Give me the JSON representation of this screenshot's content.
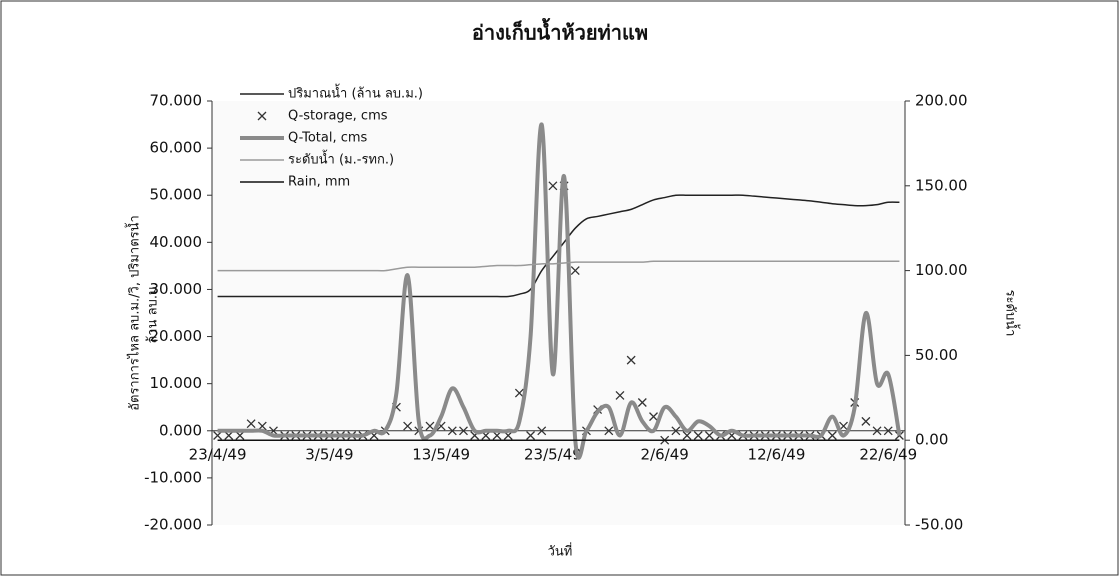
{
  "chart_data": {
    "type": "line",
    "title": "อ่างเก็บน้ำห้วยท่าแพ",
    "xlabel": "วันที่",
    "ylabel": [
      "อัตราการไหล ลบ.ม./วิ, ปริมาตรน้ำ",
      "ล้าน ลบ.ม."
    ],
    "y2label": "ระดับน้ำ",
    "categories": [
      "23/4/49",
      null,
      null,
      null,
      null,
      null,
      null,
      null,
      null,
      null,
      "3/5/49",
      null,
      null,
      null,
      null,
      null,
      null,
      null,
      null,
      null,
      "13/5/49",
      null,
      null,
      null,
      null,
      null,
      null,
      null,
      null,
      null,
      "23/5/49",
      null,
      null,
      null,
      null,
      null,
      null,
      null,
      null,
      null,
      "2/6/49",
      null,
      null,
      null,
      null,
      null,
      null,
      null,
      null,
      null,
      "12/6/49",
      null,
      null,
      null,
      null,
      null,
      null,
      null,
      null,
      null,
      "22/6/49",
      null
    ],
    "ylim": [
      -20,
      70
    ],
    "yticks": [
      {
        "value": 70,
        "label": "70.000"
      },
      {
        "value": 60,
        "label": "60.000"
      },
      {
        "value": 50,
        "label": "50.000"
      },
      {
        "value": 40,
        "label": "40.000"
      },
      {
        "value": 30,
        "label": "30.000"
      },
      {
        "value": 20,
        "label": "20.000"
      },
      {
        "value": 10,
        "label": "10.000"
      },
      {
        "value": 0,
        "label": "0.000"
      },
      {
        "value": -10,
        "label": "-10.000"
      },
      {
        "value": -20,
        "label": "-20.000"
      }
    ],
    "y2lim": [
      -50,
      200
    ],
    "y2ticks": [
      {
        "value": 200,
        "label": "200.00"
      },
      {
        "value": 150,
        "label": "150.00"
      },
      {
        "value": 100,
        "label": "100.00"
      },
      {
        "value": 50,
        "label": "50.00"
      },
      {
        "value": 0,
        "label": "0.00"
      },
      {
        "value": -50,
        "label": "-50.00"
      }
    ],
    "legend": "upper left",
    "series": [
      {
        "name": "ปริมาณน้ำ (ล้าน ลบ.ม.)",
        "color": "#222222",
        "style": "line",
        "values": [
          28.5,
          28.5,
          28.5,
          28.5,
          28.5,
          28.5,
          28.5,
          28.5,
          28.5,
          28.5,
          28.5,
          28.5,
          28.5,
          28.5,
          28.5,
          28.5,
          28.5,
          28.5,
          28.5,
          28.5,
          28.5,
          28.5,
          28.5,
          28.5,
          28.5,
          28.5,
          28.5,
          29,
          30,
          34,
          37,
          40,
          43,
          45,
          45.5,
          46,
          46.5,
          47,
          48,
          49,
          49.5,
          50,
          50,
          50,
          50,
          50,
          50,
          50,
          49.8,
          49.6,
          49.4,
          49.2,
          49,
          48.8,
          48.5,
          48.2,
          48,
          47.8,
          47.8,
          48,
          48.5,
          48.5
        ]
      },
      {
        "name": "Q-storage, cms",
        "color": "#333333",
        "style": "marker",
        "values": [
          -1,
          -1,
          -1,
          1.5,
          1,
          0,
          -1,
          -1,
          -1,
          -1,
          -1,
          -1,
          -1,
          -1,
          -1,
          0,
          5,
          1,
          0,
          1,
          1,
          0,
          0,
          -1,
          -1,
          -1,
          -1,
          8,
          -1,
          0,
          52,
          52,
          34,
          0,
          4.5,
          0,
          7.5,
          15,
          6,
          3,
          -2,
          0,
          -1,
          -1,
          -1,
          -1,
          -1,
          -1,
          -1,
          -1,
          -1,
          -1,
          -1,
          -1,
          -1,
          -1,
          1,
          6,
          2,
          0,
          0,
          -1
        ]
      },
      {
        "name": "Q-Total, cms",
        "color": "#8a8a8a",
        "style": "thick",
        "values": [
          0,
          0,
          0,
          0,
          0,
          -1,
          -1,
          -1,
          -1,
          -1,
          -1,
          -1,
          -1,
          -1,
          0,
          0,
          8,
          33,
          2,
          -1,
          3,
          9,
          5,
          0,
          0,
          0,
          0,
          2,
          20,
          65,
          12,
          54,
          -2,
          0,
          4,
          5,
          -1,
          6,
          2,
          0,
          5,
          3,
          0,
          2,
          1,
          -1,
          0,
          -1,
          -1,
          -1,
          -1,
          -1,
          -1,
          -1,
          -1,
          3,
          -1,
          5,
          25,
          10,
          12,
          -1
        ]
      },
      {
        "name": "ระดับน้ำ (ม.-รทก.)",
        "color": "#9a9a9a",
        "style": "line",
        "axis": "y2",
        "values": [
          100,
          100,
          100,
          100,
          100,
          100,
          100,
          100,
          100,
          100,
          100,
          100,
          100,
          100,
          100,
          100,
          101,
          102,
          102,
          102,
          102,
          102,
          102,
          102,
          102.5,
          103,
          103,
          103,
          103.5,
          104,
          104,
          104.5,
          105,
          105,
          105,
          105,
          105,
          105,
          105,
          105.5,
          105.5,
          105.5,
          105.5,
          105.5,
          105.5,
          105.5,
          105.5,
          105.5,
          105.5,
          105.5,
          105.5,
          105.5,
          105.5,
          105.5,
          105.5,
          105.5,
          105.5,
          105.5,
          105.5,
          105.5,
          105.5,
          105.5
        ]
      },
      {
        "name": "Rain, mm",
        "color": "#111111",
        "style": "line",
        "axis": "y2",
        "values": [
          0,
          0,
          0,
          0,
          0,
          0,
          0,
          0,
          0,
          0,
          0,
          0,
          0,
          0,
          0,
          0,
          0,
          0,
          0,
          0,
          0,
          0,
          0,
          0,
          0,
          0,
          0,
          0,
          0,
          0,
          0,
          0,
          0,
          0,
          0,
          0,
          0,
          0,
          0,
          0,
          0,
          0,
          0,
          0,
          0,
          0,
          0,
          0,
          0,
          0,
          0,
          0,
          0,
          0,
          0,
          0,
          0,
          0,
          0,
          0,
          0,
          0
        ]
      }
    ]
  }
}
